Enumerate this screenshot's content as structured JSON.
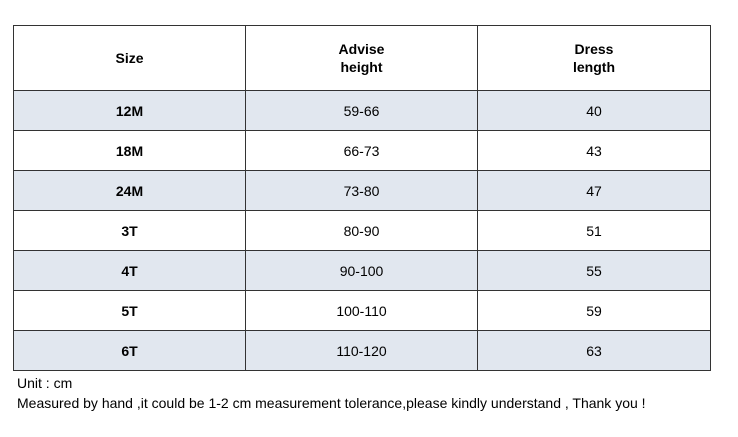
{
  "table": {
    "header": [
      "Size",
      "Advise height",
      "Dress length"
    ],
    "rows": [
      [
        "12M",
        "59-66",
        40
      ],
      [
        "18M",
        "66-73",
        43
      ],
      [
        "24M",
        "73-80",
        47
      ],
      [
        "3T",
        "80-90",
        51
      ],
      [
        "4T",
        "90-100",
        55
      ],
      [
        "5T",
        "100-110",
        59
      ],
      [
        "6T",
        "110-120",
        63
      ]
    ]
  },
  "notes": [
    "Unit : cm",
    "Measured by hand ,it could be 1-2 cm measurement tolerance,please kindly understand , Thank you !"
  ]
}
